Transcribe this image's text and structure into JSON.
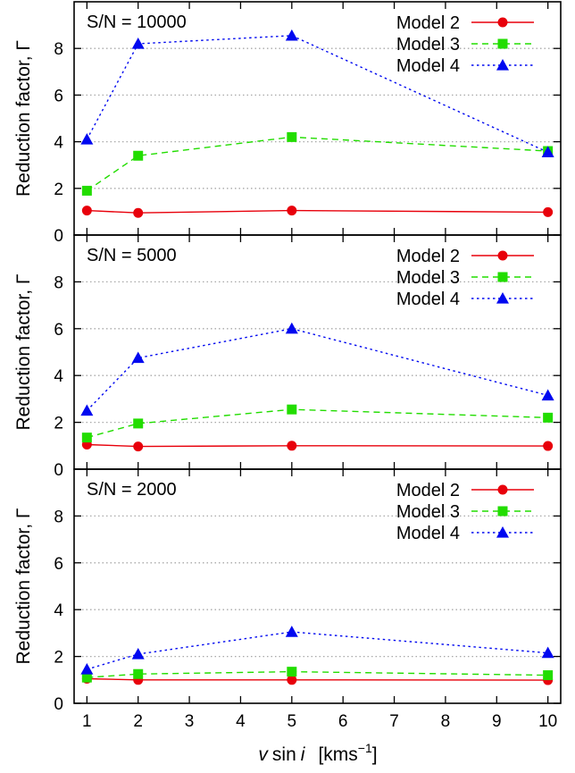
{
  "chart_data": {
    "type": "line",
    "xlabel_var": "v",
    "xlabel_mid": "sin",
    "xlabel_i": "i",
    "xlabel_unit": "[kms",
    "xlabel_exp": "−1",
    "xlabel_close": "]",
    "ylabel": "Reduction factor, Γ",
    "xlim": [
      0.75,
      10.25
    ],
    "ylim": [
      0,
      10
    ],
    "x_ticks": [
      "1",
      "2",
      "3",
      "4",
      "5",
      "6",
      "7",
      "8",
      "9",
      "10"
    ],
    "y_ticks": [
      "0",
      "2",
      "4",
      "6",
      "8"
    ],
    "grid": "horizontal-dotted",
    "legend_position": "top-right",
    "colors": {
      "model2": "#e8000b",
      "model3": "#22dd00",
      "model4": "#0008f0"
    },
    "panels": [
      {
        "label": "S/N = 10000",
        "x": [
          1,
          2,
          5,
          10
        ],
        "series": [
          {
            "name": "Model 2",
            "marker": "circle",
            "dash": "solid",
            "values": [
              1.05,
              0.95,
              1.05,
              0.98
            ]
          },
          {
            "name": "Model 3",
            "marker": "square",
            "dash": "dashed",
            "values": [
              1.9,
              3.4,
              4.2,
              3.6
            ]
          },
          {
            "name": "Model 4",
            "marker": "triangle",
            "dash": "dotted",
            "values": [
              4.1,
              8.2,
              8.55,
              3.55
            ]
          }
        ]
      },
      {
        "label": "S/N = 5000",
        "x": [
          1,
          2,
          5,
          10
        ],
        "series": [
          {
            "name": "Model 2",
            "marker": "circle",
            "dash": "solid",
            "values": [
              1.05,
              0.97,
              1.0,
              0.99
            ]
          },
          {
            "name": "Model 3",
            "marker": "square",
            "dash": "dashed",
            "values": [
              1.35,
              1.95,
              2.55,
              2.2
            ]
          },
          {
            "name": "Model 4",
            "marker": "triangle",
            "dash": "dotted",
            "values": [
              2.5,
              4.75,
              6.0,
              3.15
            ]
          }
        ]
      },
      {
        "label": "S/N = 2000",
        "x": [
          1,
          2,
          5,
          10
        ],
        "series": [
          {
            "name": "Model 2",
            "marker": "circle",
            "dash": "solid",
            "values": [
              1.05,
              1.0,
              1.0,
              0.99
            ]
          },
          {
            "name": "Model 3",
            "marker": "square",
            "dash": "dashed",
            "values": [
              1.1,
              1.25,
              1.35,
              1.2
            ]
          },
          {
            "name": "Model 4",
            "marker": "triangle",
            "dash": "dotted",
            "values": [
              1.45,
              2.1,
              3.05,
              2.15
            ]
          }
        ]
      }
    ]
  }
}
